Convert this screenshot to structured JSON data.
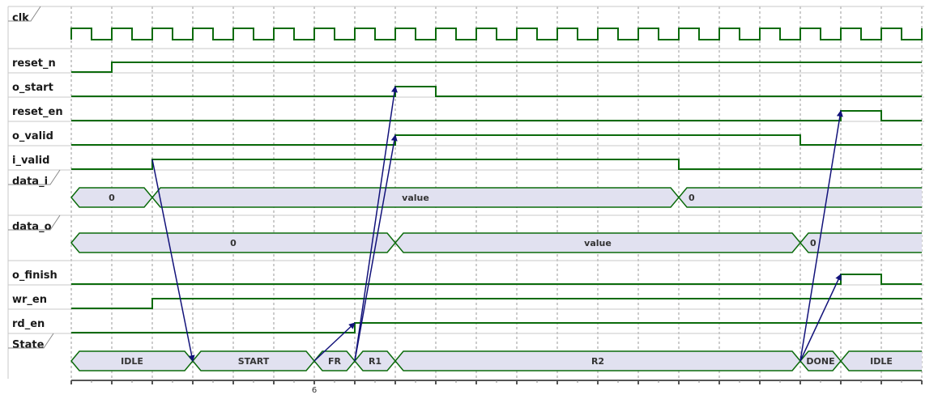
{
  "diagram": {
    "colors": {
      "wave": "#0b6b0b",
      "bus_fill": "#e1e1f0",
      "arrow": "#12127a",
      "grid": "#9a9a9a",
      "separator": "#c8c8c8"
    },
    "time_axis": {
      "tick_labels": [
        {
          "cycle": 6,
          "text": "6"
        }
      ]
    },
    "signals": [
      {
        "id": "clk",
        "name": "clk",
        "kind": "clock"
      },
      {
        "id": "reset_n",
        "name": "reset_n",
        "kind": "bit",
        "transitions": [
          [
            0,
            0
          ],
          [
            1,
            1
          ]
        ]
      },
      {
        "id": "o_start",
        "name": "o_start",
        "kind": "bit",
        "transitions": [
          [
            0,
            0
          ],
          [
            8,
            1
          ],
          [
            9,
            0
          ]
        ]
      },
      {
        "id": "reset_en",
        "name": "reset_en",
        "kind": "bit",
        "transitions": [
          [
            0,
            0
          ],
          [
            19,
            1
          ],
          [
            20,
            0
          ]
        ]
      },
      {
        "id": "o_valid",
        "name": "o_valid",
        "kind": "bit",
        "transitions": [
          [
            0,
            0
          ],
          [
            8,
            1
          ],
          [
            18,
            0
          ]
        ]
      },
      {
        "id": "i_valid",
        "name": "i_valid",
        "kind": "bit",
        "transitions": [
          [
            0,
            0
          ],
          [
            2,
            1
          ],
          [
            15,
            0
          ]
        ]
      },
      {
        "id": "data_i",
        "name": "data_i",
        "kind": "bus",
        "segments": [
          {
            "start": 0,
            "end": 2,
            "text": "0"
          },
          {
            "start": 2,
            "end": 15,
            "text": "value"
          },
          {
            "start": 15,
            "end": 21,
            "text": "0",
            "align": "left"
          }
        ]
      },
      {
        "id": "data_o",
        "name": "data_o",
        "kind": "bus",
        "segments": [
          {
            "start": 0,
            "end": 8,
            "text": "0"
          },
          {
            "start": 8,
            "end": 18,
            "text": "value"
          },
          {
            "start": 18,
            "end": 21,
            "text": "0",
            "align": "left"
          }
        ]
      },
      {
        "id": "o_finish",
        "name": "o_finish",
        "kind": "bit",
        "transitions": [
          [
            0,
            0
          ],
          [
            19,
            1
          ],
          [
            20,
            0
          ]
        ]
      },
      {
        "id": "wr_en",
        "name": "wr_en",
        "kind": "bit",
        "transitions": [
          [
            0,
            0
          ],
          [
            2,
            1
          ]
        ]
      },
      {
        "id": "rd_en",
        "name": "rd_en",
        "kind": "bit",
        "transitions": [
          [
            0,
            0
          ],
          [
            7,
            1
          ]
        ]
      },
      {
        "id": "state",
        "name": "State",
        "kind": "bus",
        "segments": [
          {
            "start": 0,
            "end": 3,
            "text": "IDLE"
          },
          {
            "start": 3,
            "end": 6,
            "text": "START"
          },
          {
            "start": 6,
            "end": 7,
            "text": "FR"
          },
          {
            "start": 7,
            "end": 8,
            "text": "R1"
          },
          {
            "start": 8,
            "end": 18,
            "text": "R2"
          },
          {
            "start": 18,
            "end": 19,
            "text": "DONE"
          },
          {
            "start": 19,
            "end": 21,
            "text": "IDLE"
          }
        ]
      }
    ],
    "arrows": [
      {
        "from": {
          "signal": "i_valid",
          "cycle": 2
        },
        "to": {
          "signal": "state",
          "cycle": 3
        }
      },
      {
        "from": {
          "signal": "state",
          "cycle": 6
        },
        "to": {
          "signal": "rd_en",
          "cycle": 7
        }
      },
      {
        "from": {
          "signal": "state",
          "cycle": 7
        },
        "to": {
          "signal": "o_start",
          "cycle": 8
        }
      },
      {
        "from": {
          "signal": "state",
          "cycle": 7
        },
        "to": {
          "signal": "o_valid",
          "cycle": 8
        }
      },
      {
        "from": {
          "signal": "state",
          "cycle": 18
        },
        "to": {
          "signal": "reset_en",
          "cycle": 19
        }
      },
      {
        "from": {
          "signal": "state",
          "cycle": 18
        },
        "to": {
          "signal": "o_finish",
          "cycle": 19
        }
      }
    ]
  }
}
